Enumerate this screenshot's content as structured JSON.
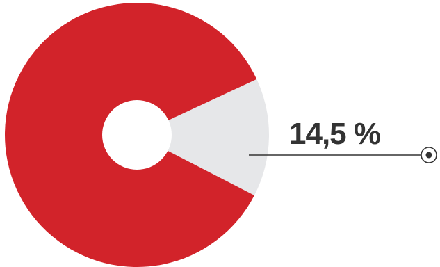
{
  "chart_data": {
    "type": "pie",
    "style": "donut",
    "slices": [
      {
        "value": 85.5,
        "color": "#d2232a"
      },
      {
        "value": 14.5,
        "color": "#e6e7e9"
      }
    ],
    "highlighted_slice": 1,
    "annotation": {
      "text": "14,5 %",
      "marker": "target-dot-icon",
      "line_color": "#333333"
    }
  }
}
